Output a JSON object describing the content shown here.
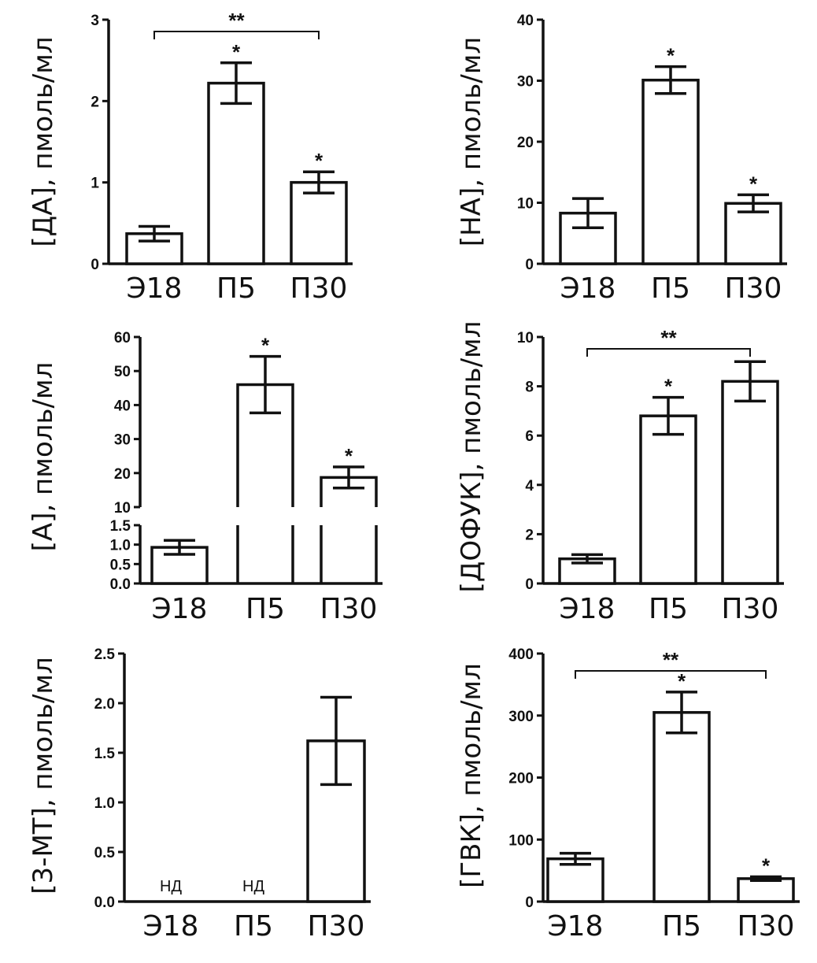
{
  "chart_data": [
    {
      "type": "bar",
      "ylabel": "[ДА], пмоль/мл",
      "categories": [
        "Э18",
        "П5",
        "П30"
      ],
      "values": [
        0.37,
        2.22,
        1.0
      ],
      "errors": [
        0.09,
        0.25,
        0.13
      ],
      "ylim": [
        0,
        3
      ],
      "yticks": [
        "0",
        "1",
        "2",
        "3"
      ],
      "star_labels": [
        "",
        "*",
        "*"
      ],
      "bracket": {
        "from": 0,
        "to": 2,
        "label": "**"
      },
      "grid": false
    },
    {
      "type": "bar",
      "ylabel": "[НА], пмоль/мл",
      "categories": [
        "Э18",
        "П5",
        "П30"
      ],
      "values": [
        8.3,
        30.1,
        9.9
      ],
      "errors": [
        2.4,
        2.2,
        1.4
      ],
      "ylim": [
        0,
        40
      ],
      "yticks": [
        "0",
        "10",
        "20",
        "30",
        "40"
      ],
      "star_labels": [
        "",
        "*",
        "*"
      ],
      "grid": false
    },
    {
      "type": "bar",
      "ylabel": "[А], пмоль/мл",
      "categories": [
        "Э18",
        "П5",
        "П30"
      ],
      "values": [
        0.93,
        46.0,
        18.7
      ],
      "errors": [
        0.18,
        8.3,
        3.1
      ],
      "ylim_lower": [
        0,
        1.5
      ],
      "ylim_upper": [
        10,
        60
      ],
      "yticks_lower": [
        "0.0",
        "0.5",
        "1.0",
        "1.5"
      ],
      "yticks_upper": [
        "10",
        "20",
        "30",
        "40",
        "50",
        "60"
      ],
      "star_labels": [
        "",
        "*",
        "*"
      ],
      "broken_axis": true,
      "grid": false
    },
    {
      "type": "bar",
      "ylabel": "[ДОФУК], пмоль/мл",
      "categories": [
        "Э18",
        "П5",
        "П30"
      ],
      "values": [
        1.0,
        6.8,
        8.2
      ],
      "errors": [
        0.17,
        0.75,
        0.8
      ],
      "ylim": [
        0,
        10
      ],
      "yticks": [
        "0",
        "2",
        "4",
        "6",
        "8",
        "10"
      ],
      "star_labels": [
        "",
        "*",
        ""
      ],
      "bracket": {
        "from": 0,
        "to": 2,
        "label": "**"
      },
      "grid": false
    },
    {
      "type": "bar",
      "ylabel": "[3-МТ], пмоль/мл",
      "categories": [
        "Э18",
        "П5",
        "П30"
      ],
      "values": [
        null,
        null,
        1.62
      ],
      "errors": [
        null,
        null,
        0.44
      ],
      "ylim": [
        0,
        2.5
      ],
      "yticks": [
        "0.0",
        "0.5",
        "1.0",
        "1.5",
        "2.0",
        "2.5"
      ],
      "star_labels": [
        "",
        "",
        ""
      ],
      "nd_labels": [
        "НД",
        "НД",
        ""
      ],
      "grid": false
    },
    {
      "type": "bar",
      "ylabel": "[ГВК], пмоль/мл",
      "categories": [
        "Э18",
        "П5",
        "П30"
      ],
      "values": [
        69,
        305,
        37
      ],
      "errors": [
        9,
        33,
        3
      ],
      "ylim": [
        0,
        400
      ],
      "yticks": [
        "0",
        "100",
        "200",
        "300",
        "400"
      ],
      "star_labels": [
        "",
        "*",
        "*"
      ],
      "bracket": {
        "from": 0,
        "to": 2,
        "label": "**"
      },
      "grid": false
    }
  ]
}
